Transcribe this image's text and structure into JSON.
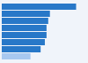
{
  "chart_data": {
    "type": "bar",
    "orientation": "horizontal",
    "categories": [
      null,
      null,
      null,
      null,
      null,
      null,
      null,
      null
    ],
    "values": [
      88,
      57,
      55,
      53,
      53,
      51,
      46,
      34
    ],
    "colors": [
      "#2878c8",
      "#2878c8",
      "#2878c8",
      "#2878c8",
      "#2878c8",
      "#2878c8",
      "#2878c8",
      "#a8c8f0"
    ],
    "xlim": [
      0,
      100
    ],
    "tick_labels": false
  }
}
